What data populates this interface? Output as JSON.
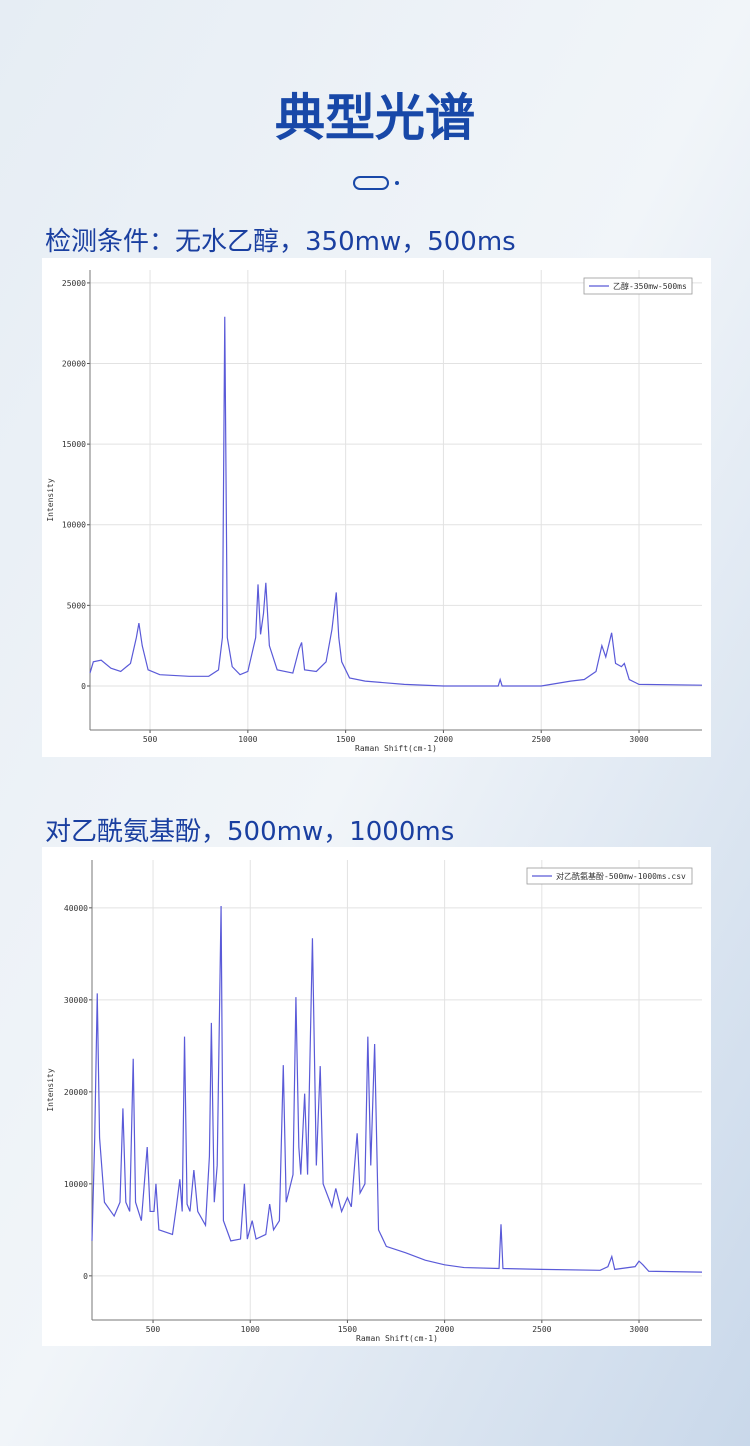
{
  "header": {
    "title": "典型光谱"
  },
  "chart_data": [
    {
      "type": "line",
      "title": "检测条件：无水乙醇，350mw，500ms",
      "x_label": "Raman Shift(cm-1)",
      "y_label": "Intensity",
      "xlim": [
        193,
        3322
      ],
      "ylim": [
        -2730,
        25800
      ],
      "xticks": [
        500,
        1000,
        1500,
        2000,
        2500,
        3000
      ],
      "yticks": [
        0,
        5000,
        10000,
        15000,
        20000,
        25000
      ],
      "grid": true,
      "legend": "upper right",
      "x": [
        193,
        210,
        250,
        300,
        350,
        400,
        430,
        443,
        460,
        490,
        550,
        700,
        800,
        850,
        870,
        882,
        895,
        920,
        960,
        1000,
        1040,
        1052,
        1065,
        1080,
        1092,
        1110,
        1150,
        1230,
        1262,
        1275,
        1290,
        1350,
        1400,
        1430,
        1452,
        1465,
        1480,
        1520,
        1600,
        1800,
        2000,
        2280,
        2290,
        2300,
        2500,
        2650,
        2720,
        2780,
        2810,
        2830,
        2860,
        2880,
        2910,
        2925,
        2950,
        3000,
        3322
      ],
      "series": [
        {
          "name": "乙醇-350mw-500ms",
          "color": "#5a5ad8",
          "values": [
            800,
            1500,
            1600,
            1100,
            900,
            1400,
            3000,
            3900,
            2500,
            1000,
            700,
            600,
            600,
            1000,
            3000,
            22900,
            3000,
            1200,
            700,
            900,
            3000,
            6300,
            3200,
            4500,
            6400,
            2500,
            1000,
            800,
            2300,
            2700,
            1000,
            900,
            1500,
            3500,
            5800,
            3000,
            1500,
            500,
            300,
            100,
            0,
            0,
            400,
            0,
            0,
            300,
            400,
            900,
            2500,
            1800,
            3300,
            1400,
            1200,
            1400,
            400,
            100,
            50
          ]
        }
      ]
    },
    {
      "type": "line",
      "title": "对乙酰氨基酚，500mw，1000ms",
      "x_label": "Raman Shift(cm-1)",
      "y_label": "Intensity",
      "xlim": [
        186,
        3324
      ],
      "ylim": [
        -4800,
        45200
      ],
      "xticks": [
        500,
        1000,
        1500,
        2000,
        2500,
        3000
      ],
      "yticks": [
        0,
        10000,
        20000,
        30000,
        40000
      ],
      "grid": true,
      "legend": "upper right",
      "x": [
        186,
        200,
        213,
        225,
        250,
        300,
        330,
        345,
        360,
        380,
        398,
        410,
        440,
        470,
        485,
        505,
        515,
        530,
        600,
        620,
        638,
        650,
        662,
        675,
        690,
        710,
        730,
        770,
        790,
        800,
        815,
        830,
        850,
        862,
        900,
        950,
        970,
        985,
        1010,
        1030,
        1080,
        1100,
        1120,
        1150,
        1170,
        1185,
        1220,
        1235,
        1250,
        1260,
        1280,
        1295,
        1320,
        1340,
        1360,
        1375,
        1420,
        1440,
        1470,
        1500,
        1520,
        1550,
        1565,
        1590,
        1605,
        1620,
        1640,
        1660,
        1700,
        1800,
        1900,
        2000,
        2100,
        2280,
        2290,
        2300,
        2500,
        2800,
        2840,
        2860,
        2875,
        2980,
        3000,
        3020,
        3050,
        3324
      ],
      "series": [
        {
          "name": "对乙酰氨基酚-500mw-1000ms.csv",
          "color": "#5a5ad8",
          "values": [
            3800,
            15000,
            30700,
            15000,
            8000,
            6500,
            8000,
            18200,
            8000,
            7000,
            23600,
            8000,
            6000,
            14000,
            7000,
            7000,
            10000,
            5000,
            4500,
            7500,
            10500,
            7000,
            26000,
            7800,
            7000,
            11500,
            7000,
            5500,
            13000,
            27500,
            8000,
            12000,
            40200,
            6000,
            3800,
            4000,
            10000,
            4000,
            6000,
            4000,
            4500,
            7800,
            5000,
            6000,
            22900,
            8000,
            11000,
            30300,
            14000,
            11000,
            19800,
            11000,
            36700,
            12000,
            22800,
            10000,
            7500,
            9500,
            7000,
            8500,
            7500,
            15500,
            9000,
            10000,
            26000,
            12000,
            25200,
            5000,
            3200,
            2500,
            1700,
            1200,
            900,
            800,
            5600,
            800,
            700,
            600,
            1000,
            2100,
            700,
            1000,
            1600,
            1200,
            500,
            400
          ]
        }
      ]
    }
  ]
}
